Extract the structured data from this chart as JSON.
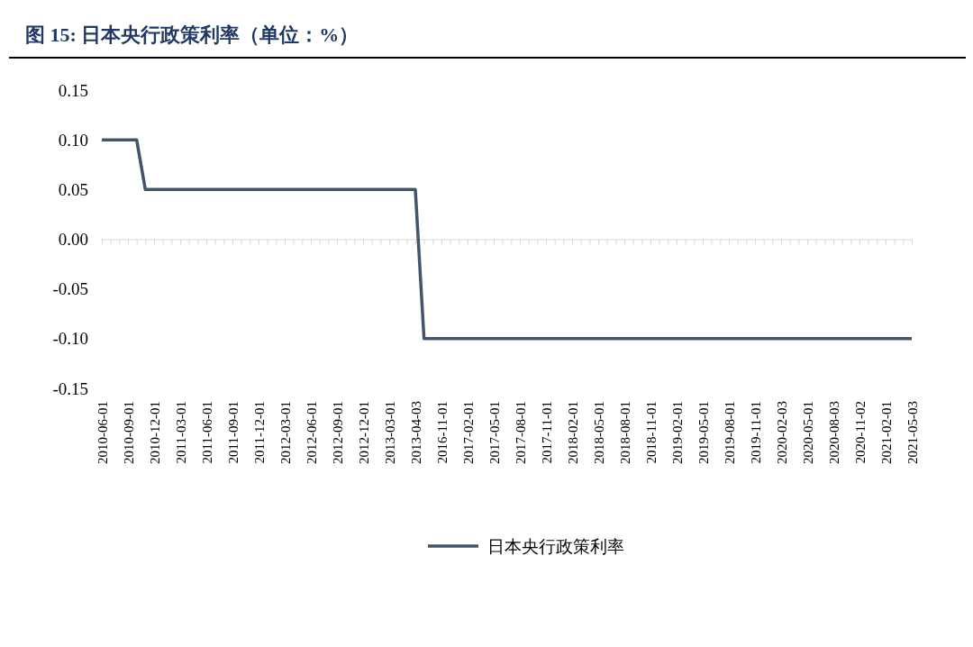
{
  "chart_data": {
    "type": "line",
    "title": "图 15:  日本央行政策利率（单位：%）",
    "categories": [
      "2010-06-01",
      null,
      null,
      "2010-09-01",
      null,
      null,
      "2010-12-01",
      null,
      null,
      "2011-03-01",
      null,
      null,
      "2011-06-01",
      null,
      null,
      "2011-09-01",
      null,
      null,
      "2011-12-01",
      null,
      null,
      "2012-03-01",
      null,
      null,
      "2012-06-01",
      null,
      null,
      "2012-09-01",
      null,
      null,
      "2012-12-01",
      null,
      null,
      "2013-03-01",
      null,
      null,
      "2013-04-03",
      null,
      null,
      "2016-11-01",
      null,
      null,
      "2017-02-01",
      null,
      null,
      "2017-05-01",
      null,
      null,
      "2017-08-01",
      null,
      null,
      "2017-11-01",
      null,
      null,
      "2018-02-01",
      null,
      null,
      "2018-05-01",
      null,
      null,
      "2018-08-01",
      null,
      null,
      "2018-11-01",
      null,
      null,
      "2019-02-01",
      null,
      null,
      "2019-05-01",
      null,
      null,
      "2019-08-01",
      null,
      null,
      "2019-11-01",
      null,
      null,
      "2020-02-03",
      null,
      null,
      "2020-05-01",
      null,
      null,
      "2020-08-03",
      null,
      null,
      "2020-11-02",
      null,
      null,
      "2021-02-01",
      null,
      null,
      "2021-05-03"
    ],
    "series": [
      {
        "name": "日本央行政策利率",
        "color": "#44546a",
        "values": [
          0.1,
          0.1,
          0.1,
          0.1,
          0.1,
          0.05,
          0.05,
          0.05,
          0.05,
          0.05,
          0.05,
          0.05,
          0.05,
          0.05,
          0.05,
          0.05,
          0.05,
          0.05,
          0.05,
          0.05,
          0.05,
          0.05,
          0.05,
          0.05,
          0.05,
          0.05,
          0.05,
          0.05,
          0.05,
          0.05,
          0.05,
          0.05,
          0.05,
          0.05,
          0.05,
          0.05,
          0.05,
          -0.1,
          -0.1,
          -0.1,
          -0.1,
          -0.1,
          -0.1,
          -0.1,
          -0.1,
          -0.1,
          -0.1,
          -0.1,
          -0.1,
          -0.1,
          -0.1,
          -0.1,
          -0.1,
          -0.1,
          -0.1,
          -0.1,
          -0.1,
          -0.1,
          -0.1,
          -0.1,
          -0.1,
          -0.1,
          -0.1,
          -0.1,
          -0.1,
          -0.1,
          -0.1,
          -0.1,
          -0.1,
          -0.1,
          -0.1,
          -0.1,
          -0.1,
          -0.1,
          -0.1,
          -0.1,
          -0.1,
          -0.1,
          -0.1,
          -0.1,
          -0.1,
          -0.1,
          -0.1,
          -0.1,
          -0.1,
          -0.1,
          -0.1,
          -0.1,
          -0.1,
          -0.1,
          -0.1,
          -0.1,
          -0.1,
          -0.1
        ]
      }
    ],
    "ylim": [
      -0.15,
      0.15
    ],
    "yticks": [
      {
        "value": -0.15,
        "label": "-0.15"
      },
      {
        "value": -0.1,
        "label": "-0.10"
      },
      {
        "value": -0.05,
        "label": "-0.05"
      },
      {
        "value": 0,
        "label": "0.00"
      },
      {
        "value": 0.05,
        "label": "0.05"
      },
      {
        "value": 0.1,
        "label": "0.10"
      },
      {
        "value": 0.15,
        "label": "0.15"
      }
    ],
    "legend": "bottom"
  }
}
